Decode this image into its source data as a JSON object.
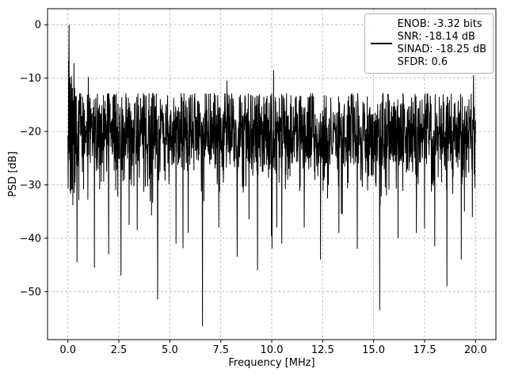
{
  "page": {
    "background": "#ffffff"
  },
  "chart_data": {
    "type": "line",
    "title": "",
    "xlabel": "Frequency [MHz]",
    "ylabel": "PSD [dB]",
    "xlim": [
      -1,
      21
    ],
    "ylim": [
      -59,
      3
    ],
    "x_ticks": [
      0.0,
      2.5,
      5.0,
      7.5,
      10.0,
      12.5,
      15.0,
      17.5,
      20.0
    ],
    "x_tick_labels": [
      "0.0",
      "2.5",
      "5.0",
      "7.5",
      "10.0",
      "12.5",
      "15.0",
      "17.5",
      "20.0"
    ],
    "y_ticks": [
      0,
      -10,
      -20,
      -30,
      -40,
      -50
    ],
    "y_tick_labels": [
      "0",
      "−10",
      "−20",
      "−30",
      "−40",
      "−50"
    ],
    "grid": true,
    "grid_color": "#b0b0b0",
    "legend_position": "upper right",
    "legend": {
      "lines": [
        "ENOB: -3.32 bits",
        "SNR: -18.14 dB",
        "SINAD: -18.25 dB",
        "SFDR: 0.6"
      ]
    },
    "series": [
      {
        "name": "ENOB: -3.32 bits / SNR: -18.14 dB / SINAD: -18.25 dB / SFDR: 0.6",
        "color": "#000000",
        "description": "Dense noise power spectral density: noise band roughly -28 to -13 dB across 0-20 MHz, DC peak reaching 0 dB near 0 MHz, many narrow downward spikes to -35...-56 dB",
        "synthesis": {
          "n_points": 1800,
          "x_range": [
            0,
            20
          ],
          "noise_mean": -20.5,
          "noise_std": 4.5,
          "clamp": [
            -33.5,
            -12.8
          ],
          "downspike_prob": 0.028,
          "downspike_max_depth": 15,
          "seed": 42
        },
        "dc_peak": {
          "x": 0.06,
          "y": 0.0
        },
        "notable_maxima": [
          {
            "x": 10.1,
            "y": -8.5
          },
          {
            "x": 1.0,
            "y": -9.8
          },
          {
            "x": 7.8,
            "y": -10.5
          },
          {
            "x": 19.9,
            "y": -9.5
          }
        ],
        "notable_minima": [
          {
            "x": 0.45,
            "y": -44.5
          },
          {
            "x": 1.3,
            "y": -45.5
          },
          {
            "x": 2.0,
            "y": -43.0
          },
          {
            "x": 2.6,
            "y": -47.0
          },
          {
            "x": 3.0,
            "y": -37.5
          },
          {
            "x": 3.4,
            "y": -38.5
          },
          {
            "x": 4.4,
            "y": -51.5
          },
          {
            "x": 5.3,
            "y": -41.0
          },
          {
            "x": 5.9,
            "y": -39.0
          },
          {
            "x": 6.6,
            "y": -56.5
          },
          {
            "x": 7.4,
            "y": -38.0
          },
          {
            "x": 8.3,
            "y": -43.5
          },
          {
            "x": 9.3,
            "y": -46.0
          },
          {
            "x": 10.5,
            "y": -41.0
          },
          {
            "x": 11.6,
            "y": -38.0
          },
          {
            "x": 12.4,
            "y": -44.0
          },
          {
            "x": 13.3,
            "y": -39.0
          },
          {
            "x": 14.2,
            "y": -42.0
          },
          {
            "x": 15.3,
            "y": -53.5
          },
          {
            "x": 16.2,
            "y": -40.0
          },
          {
            "x": 17.1,
            "y": -39.0
          },
          {
            "x": 18.0,
            "y": -41.5
          },
          {
            "x": 18.6,
            "y": -49.0
          },
          {
            "x": 19.3,
            "y": -44.0
          }
        ]
      }
    ]
  }
}
